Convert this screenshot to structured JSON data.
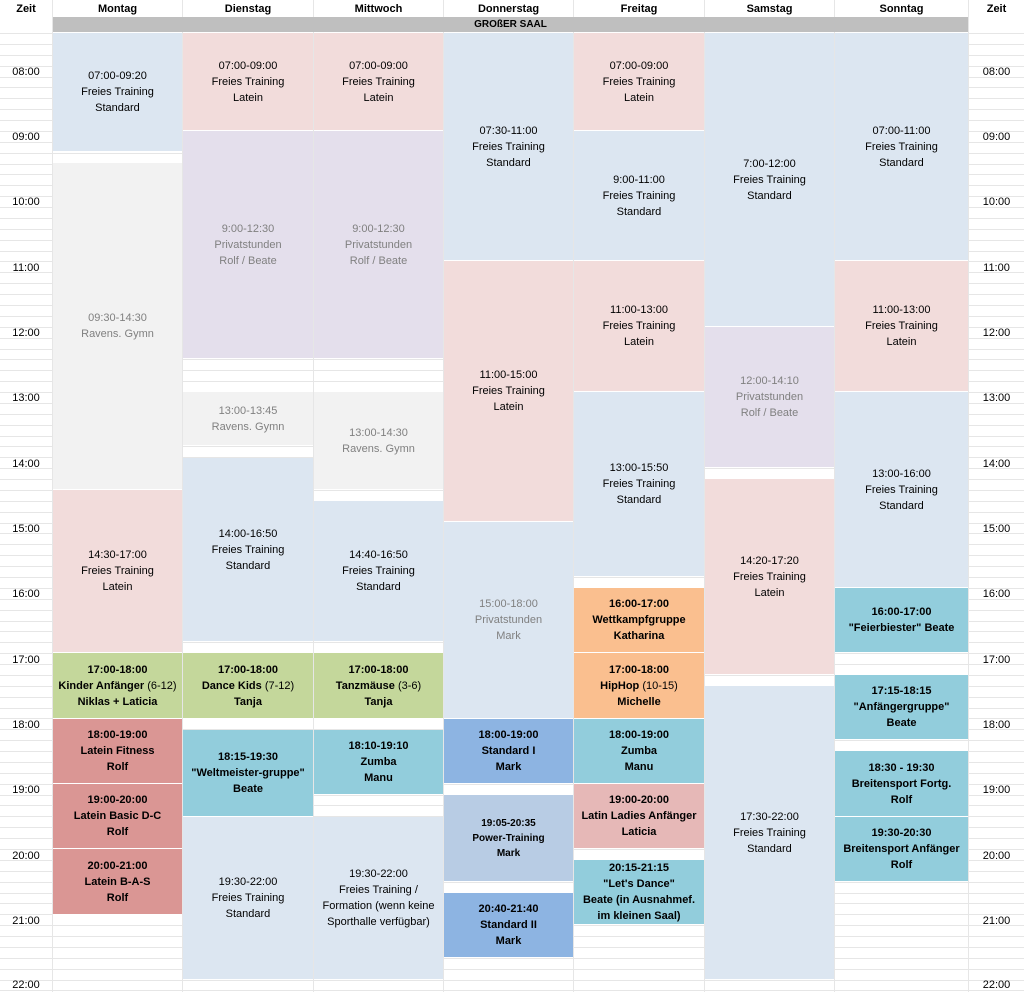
{
  "headers": {
    "time_left": "Zeit",
    "time_right": "Zeit",
    "days": [
      "Montag",
      "Dienstag",
      "Mittwoch",
      "Donnerstag",
      "Freitag",
      "Samstag",
      "Sonntag"
    ]
  },
  "hall": "GROßER SAAL",
  "times": [
    "08:00",
    "09:00",
    "10:00",
    "11:00",
    "12:00",
    "13:00",
    "14:00",
    "15:00",
    "16:00",
    "17:00",
    "18:00",
    "19:00",
    "20:00",
    "21:00",
    "22:00"
  ],
  "events": {
    "mon_1": {
      "time": "07:00-09:20",
      "title": "Freies Training",
      "sub": "Standard"
    },
    "mon_2": {
      "time": "09:30-14:30",
      "title": "Ravens. Gymn"
    },
    "mon_3": {
      "time": "14:30-17:00",
      "title": "Freies Training",
      "sub": "Latein"
    },
    "mon_4": {
      "time": "17:00-18:00",
      "title": "Kinder Anfänger",
      "age": "(6-12)",
      "sub": "Niklas + Laticia"
    },
    "mon_5": {
      "time": "18:00-19:00",
      "title": "Latein Fitness",
      "sub": "Rolf"
    },
    "mon_6": {
      "time": "19:00-20:00",
      "title": "Latein Basic D-C",
      "sub": "Rolf"
    },
    "mon_7": {
      "time": "20:00-21:00",
      "title": "Latein B-A-S",
      "sub": "Rolf"
    },
    "tue_1": {
      "time": "07:00-09:00",
      "title": "Freies Training",
      "sub": "Latein"
    },
    "tue_2": {
      "time": "9:00-12:30",
      "title": "Privatstunden",
      "sub": "Rolf / Beate"
    },
    "tue_3": {
      "time": "13:00-13:45",
      "title": "Ravens. Gymn"
    },
    "tue_4": {
      "time": "14:00-16:50",
      "title": "Freies Training",
      "sub": "Standard"
    },
    "tue_5": {
      "time": "17:00-18:00",
      "title": "Dance Kids",
      "age": "(7-12)",
      "sub": "Tanja"
    },
    "tue_6": {
      "time": "18:15-19:30",
      "title": "\"Weltmeister-gruppe\"",
      "sub": "Beate"
    },
    "tue_7": {
      "time": "19:30-22:00",
      "title": "Freies Training",
      "sub": "Standard"
    },
    "wed_1": {
      "time": "07:00-09:00",
      "title": "Freies Training",
      "sub": "Latein"
    },
    "wed_2": {
      "time": "9:00-12:30",
      "title": "Privatstunden",
      "sub": "Rolf / Beate"
    },
    "wed_3": {
      "time": "13:00-14:30",
      "title": "Ravens. Gymn"
    },
    "wed_4": {
      "time": "14:40-16:50",
      "title": "Freies Training",
      "sub": "Standard"
    },
    "wed_5": {
      "time": "17:00-18:00",
      "title": "Tanzmäuse",
      "age": "(3-6)",
      "sub": "Tanja"
    },
    "wed_6": {
      "time": "18:10-19:10",
      "title": "Zumba",
      "sub": "Manu"
    },
    "wed_7": {
      "time": "19:30-22:00",
      "title": "Freies Training /",
      "sub": "Formation (wenn keine",
      "sub2": "Sporthalle verfügbar)"
    },
    "thu_1": {
      "time": "07:30-11:00",
      "title": "Freies Training",
      "sub": "Standard"
    },
    "thu_2": {
      "time": "11:00-15:00",
      "title": "Freies Training",
      "sub": "Latein"
    },
    "thu_3": {
      "time": "15:00-18:00",
      "title": "Privatstunden",
      "sub": "Mark"
    },
    "thu_4": {
      "time": "18:00-19:00",
      "title": "Standard I",
      "sub": "Mark"
    },
    "thu_5": {
      "time": "19:05-20:35",
      "title": "Power-Training",
      "sub": "Mark"
    },
    "thu_6": {
      "time": "20:40-21:40",
      "title": "Standard II",
      "sub": "Mark"
    },
    "fri_1": {
      "time": "07:00-09:00",
      "title": "Freies Training",
      "sub": "Latein"
    },
    "fri_2": {
      "time": "9:00-11:00",
      "title": "Freies Training",
      "sub": "Standard"
    },
    "fri_3": {
      "time": "11:00-13:00",
      "title": "Freies Training",
      "sub": "Latein"
    },
    "fri_4": {
      "time": "13:00-15:50",
      "title": "Freies Training",
      "sub": "Standard"
    },
    "fri_5": {
      "time": "16:00-17:00",
      "title": "Wettkampfgruppe",
      "sub": "Katharina"
    },
    "fri_6": {
      "time": "17:00-18:00",
      "title": "HipHop",
      "age": "(10-15)",
      "sub": "Michelle"
    },
    "fri_7": {
      "time": "18:00-19:00",
      "title": "Zumba",
      "sub": "Manu"
    },
    "fri_8": {
      "time": "19:00-20:00",
      "title": "Latin Ladies Anfänger",
      "sub": "Laticia"
    },
    "fri_9": {
      "time": "20:15-21:15",
      "title": "\"Let's Dance\"",
      "sub": "Beate (in Ausnahmef.",
      "sub2": "im kleinen Saal)"
    },
    "sat_1": {
      "time": "7:00-12:00",
      "title": "Freies Training",
      "sub": "Standard"
    },
    "sat_2": {
      "time": "12:00-14:10",
      "title": "Privatstunden",
      "sub": "Rolf / Beate"
    },
    "sat_3": {
      "time": "14:20-17:20",
      "title": "Freies Training",
      "sub": "Latein"
    },
    "sat_4": {
      "time": "17:30-22:00",
      "title": "Freies Training",
      "sub": "Standard"
    },
    "sun_1": {
      "time": "07:00-11:00",
      "title": "Freies Training",
      "sub": "Standard"
    },
    "sun_2": {
      "time": "11:00-13:00",
      "title": "Freies Training",
      "sub": "Latein"
    },
    "sun_3": {
      "time": "13:00-16:00",
      "title": "Freies Training",
      "sub": "Standard"
    },
    "sun_4": {
      "time": "16:00-17:00",
      "title": "\"Feierbiester\" Beate"
    },
    "sun_5": {
      "time": "17:15-18:15",
      "title": "\"Anfängergruppe\"",
      "sub": "Beate"
    },
    "sun_6": {
      "time": "18:30 - 19:30",
      "title": "Breitensport Fortg.",
      "sub": "Rolf"
    },
    "sun_7": {
      "time": "19:30-20:30",
      "title": "Breitensport Anfänger",
      "sub": "Rolf"
    }
  }
}
